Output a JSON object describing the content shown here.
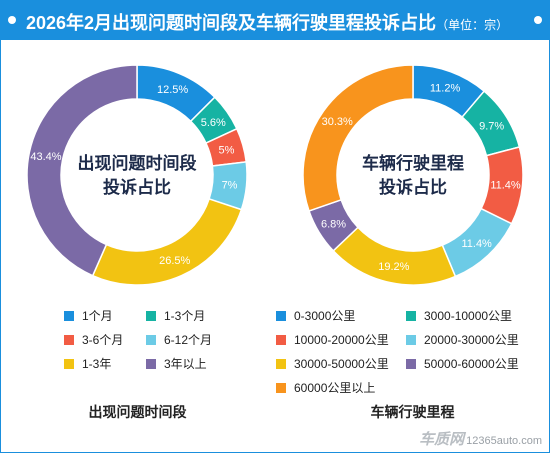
{
  "header": {
    "title": "2026年2月出现问题时间段及车辆行驶里程投诉占比",
    "unit": "（单位：宗）"
  },
  "colors": {
    "header_bg": "#1a8fdd",
    "blue": "#1a8fdd",
    "teal": "#16b3a3",
    "red": "#f25c44",
    "light_blue": "#6ccbe6",
    "yellow": "#f2c312",
    "purple": "#7b6aa6",
    "orange": "#f8941d"
  },
  "chart_data": [
    {
      "type": "pie",
      "donut": true,
      "center_label": [
        "出现问题时间段",
        "投诉占比"
      ],
      "subtitle": "出现问题时间段",
      "labels": [
        "1个月",
        "1-3个月",
        "3-6个月",
        "6-12个月",
        "1-3年",
        "3年以上"
      ],
      "values": [
        12.5,
        5.6,
        5,
        7,
        26.5,
        43.4
      ],
      "value_labels": [
        "12.5%",
        "5.6%",
        "5%",
        "7%",
        "26.5%",
        "43.4%"
      ],
      "colors": [
        "#1a8fdd",
        "#16b3a3",
        "#f25c44",
        "#6ccbe6",
        "#f2c312",
        "#7b6aa6"
      ],
      "legend_placement": "bottom"
    },
    {
      "type": "pie",
      "donut": true,
      "center_label": [
        "车辆行驶里程",
        "投诉占比"
      ],
      "subtitle": "车辆行驶里程",
      "labels": [
        "0-3000公里",
        "3000-10000公里",
        "10000-20000公里",
        "20000-30000公里",
        "30000-50000公里",
        "50000-60000公里",
        "60000公里以上"
      ],
      "values": [
        11.2,
        9.7,
        11.4,
        11.4,
        19.2,
        6.8,
        30.3
      ],
      "value_labels": [
        "11.2%",
        "9.7%",
        "11.4%",
        "11.4%",
        "19.2%",
        "6.8%",
        "30.3%"
      ],
      "colors": [
        "#1a8fdd",
        "#16b3a3",
        "#f25c44",
        "#6ccbe6",
        "#f2c312",
        "#7b6aa6",
        "#f8941d"
      ],
      "legend_placement": "bottom"
    }
  ],
  "watermark": {
    "brand": "车质网",
    "site": "12365auto.com"
  }
}
